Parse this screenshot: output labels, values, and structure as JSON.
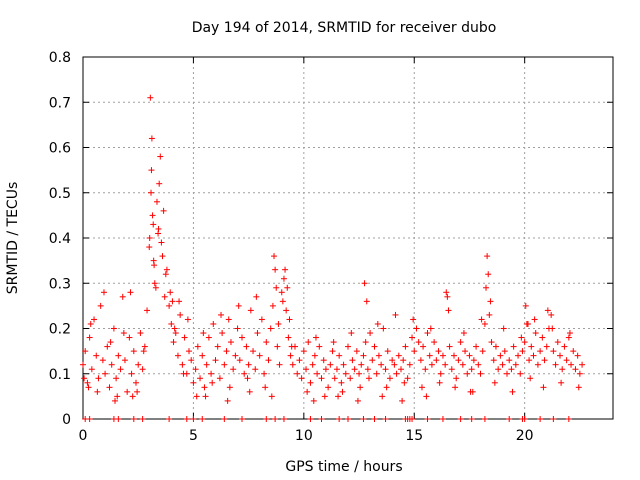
{
  "chart_data": {
    "type": "scatter",
    "title": "Day 194 of 2014, SRMTID for receiver dubo",
    "xlabel": "GPS time / hours",
    "ylabel": "SRMTID / TECUs",
    "xlim": [
      0,
      24
    ],
    "ylim": [
      0,
      0.8
    ],
    "xticks": [
      0,
      5,
      10,
      15,
      20
    ],
    "xtick_labels": [
      "0",
      "5",
      "10",
      "15",
      "20"
    ],
    "yticks": [
      0,
      0.1,
      0.2,
      0.3,
      0.4,
      0.5,
      0.6,
      0.7,
      0.8
    ],
    "ytick_labels": [
      "0",
      "0.1",
      "0.2",
      "0.3",
      "0.4",
      "0.5",
      "0.6",
      "0.7",
      "0.8"
    ],
    "grid": true,
    "marker": "+",
    "series": [
      {
        "name": "SRMTID",
        "color": "#ff0000",
        "x": [
          0.0,
          0.1,
          0.2,
          0.3,
          0.4,
          0.5,
          0.6,
          0.7,
          0.8,
          0.9,
          1.0,
          1.1,
          1.2,
          1.3,
          1.4,
          1.5,
          1.6,
          1.7,
          1.8,
          1.9,
          2.0,
          2.1,
          2.2,
          2.3,
          2.4,
          2.5,
          2.6,
          2.7,
          2.8,
          2.9,
          3.0,
          3.05,
          3.1,
          3.15,
          3.2,
          3.3,
          3.4,
          3.5,
          3.6,
          3.7,
          3.8,
          3.9,
          4.0,
          4.1,
          4.2,
          4.3,
          4.4,
          4.5,
          4.6,
          4.7,
          4.8,
          4.9,
          5.0,
          5.1,
          5.2,
          5.3,
          5.4,
          5.5,
          5.6,
          5.7,
          5.8,
          5.9,
          6.0,
          6.1,
          6.2,
          6.3,
          6.4,
          6.5,
          6.6,
          6.7,
          6.8,
          6.9,
          7.0,
          7.1,
          7.2,
          7.3,
          7.4,
          7.5,
          7.6,
          7.7,
          7.8,
          7.9,
          8.0,
          8.1,
          8.2,
          8.3,
          8.4,
          8.5,
          8.6,
          8.7,
          8.8,
          8.9,
          9.0,
          9.1,
          9.2,
          9.3,
          9.4,
          9.5,
          9.6,
          9.7,
          9.8,
          9.9,
          10.0,
          10.1,
          10.2,
          10.3,
          10.4,
          10.5,
          10.6,
          10.7,
          10.8,
          10.9,
          11.0,
          11.1,
          11.2,
          11.3,
          11.4,
          11.5,
          11.6,
          11.7,
          11.8,
          11.9,
          12.0,
          12.1,
          12.2,
          12.3,
          12.4,
          12.5,
          12.6,
          12.7,
          12.8,
          12.9,
          13.0,
          13.1,
          13.2,
          13.3,
          13.4,
          13.5,
          13.6,
          13.7,
          13.8,
          13.9,
          14.0,
          14.1,
          14.2,
          14.3,
          14.4,
          14.5,
          14.6,
          14.7,
          14.8,
          14.9,
          15.0,
          15.1,
          15.2,
          15.3,
          15.4,
          15.5,
          15.6,
          15.7,
          15.8,
          15.9,
          16.0,
          16.1,
          16.2,
          16.3,
          16.4,
          16.5,
          16.6,
          16.7,
          16.8,
          16.9,
          17.0,
          17.1,
          17.2,
          17.3,
          17.4,
          17.5,
          17.6,
          17.7,
          17.8,
          17.9,
          18.0,
          18.1,
          18.2,
          18.3,
          18.4,
          18.5,
          18.6,
          18.7,
          18.8,
          18.9,
          19.0,
          19.1,
          19.2,
          19.3,
          19.4,
          19.5,
          19.6,
          19.7,
          19.8,
          19.9,
          20.0,
          20.1,
          20.2,
          20.3,
          20.4,
          20.5,
          20.6,
          20.7,
          20.8,
          20.9,
          21.0,
          21.1,
          21.2,
          21.3,
          21.4,
          21.5,
          21.6,
          21.7,
          21.8,
          21.9,
          22.0,
          22.1,
          22.2,
          22.3,
          22.4,
          22.5,
          22.6,
          0.05,
          0.35,
          0.65,
          0.95,
          1.25,
          1.55,
          1.85,
          2.15,
          2.45,
          2.75,
          3.08,
          3.12,
          3.18,
          3.25,
          3.35,
          3.45,
          3.55,
          3.65,
          3.75,
          3.95,
          4.15,
          4.35,
          4.55,
          4.75,
          5.15,
          5.45,
          5.85,
          6.25,
          6.65,
          7.05,
          7.45,
          7.85,
          8.25,
          8.65,
          8.75,
          8.85,
          9.05,
          9.15,
          9.25,
          9.45,
          10.15,
          10.55,
          10.95,
          11.35,
          11.75,
          12.15,
          12.55,
          12.75,
          12.85,
          12.95,
          13.35,
          13.75,
          14.15,
          14.55,
          14.95,
          15.35,
          15.75,
          16.15,
          16.45,
          16.55,
          16.85,
          17.25,
          17.65,
          18.05,
          18.25,
          18.35,
          18.45,
          18.65,
          19.05,
          19.45,
          19.85,
          20.05,
          20.15,
          20.25,
          20.45,
          20.85,
          21.05,
          21.25,
          21.65,
          22.05,
          22.45,
          0.25,
          1.45,
          2.25,
          3.02,
          3.22,
          3.42,
          4.05,
          5.55,
          6.55,
          7.55,
          8.55,
          9.35,
          10.45,
          11.55,
          12.45,
          13.55,
          14.45,
          15.55,
          17.55
        ],
        "y": [
          0.12,
          0.15,
          0.08,
          0.18,
          0.11,
          0.22,
          0.14,
          0.09,
          0.25,
          0.13,
          0.1,
          0.16,
          0.07,
          0.12,
          0.2,
          0.09,
          0.14,
          0.11,
          0.27,
          0.13,
          0.06,
          0.18,
          0.1,
          0.15,
          0.08,
          0.12,
          0.19,
          0.11,
          0.16,
          0.24,
          0.38,
          0.71,
          0.55,
          0.45,
          0.35,
          0.29,
          0.41,
          0.58,
          0.36,
          0.27,
          0.33,
          0.25,
          0.21,
          0.17,
          0.19,
          0.14,
          0.23,
          0.12,
          0.18,
          0.1,
          0.15,
          0.13,
          0.08,
          0.11,
          0.16,
          0.09,
          0.14,
          0.07,
          0.12,
          0.18,
          0.1,
          0.21,
          0.13,
          0.16,
          0.09,
          0.19,
          0.12,
          0.15,
          0.22,
          0.17,
          0.11,
          0.14,
          0.2,
          0.13,
          0.18,
          0.1,
          0.16,
          0.12,
          0.24,
          0.15,
          0.11,
          0.19,
          0.14,
          0.22,
          0.1,
          0.17,
          0.13,
          0.2,
          0.25,
          0.33,
          0.16,
          0.12,
          0.28,
          0.31,
          0.24,
          0.18,
          0.14,
          0.12,
          0.16,
          0.1,
          0.13,
          0.09,
          0.15,
          0.11,
          0.17,
          0.08,
          0.12,
          0.14,
          0.1,
          0.16,
          0.09,
          0.13,
          0.11,
          0.07,
          0.12,
          0.15,
          0.09,
          0.11,
          0.14,
          0.08,
          0.12,
          0.1,
          0.16,
          0.09,
          0.13,
          0.11,
          0.15,
          0.1,
          0.12,
          0.14,
          0.17,
          0.11,
          0.19,
          0.13,
          0.16,
          0.1,
          0.14,
          0.12,
          0.2,
          0.11,
          0.15,
          0.09,
          0.13,
          0.12,
          0.1,
          0.14,
          0.11,
          0.13,
          0.16,
          0.09,
          0.12,
          0.18,
          0.15,
          0.2,
          0.17,
          0.13,
          0.16,
          0.11,
          0.19,
          0.14,
          0.12,
          0.17,
          0.13,
          0.15,
          0.1,
          0.14,
          0.12,
          0.27,
          0.16,
          0.11,
          0.14,
          0.09,
          0.13,
          0.17,
          0.12,
          0.15,
          0.1,
          0.14,
          0.11,
          0.13,
          0.16,
          0.12,
          0.1,
          0.15,
          0.21,
          0.36,
          0.23,
          0.17,
          0.13,
          0.16,
          0.11,
          0.14,
          0.12,
          0.15,
          0.1,
          0.13,
          0.11,
          0.16,
          0.12,
          0.14,
          0.1,
          0.15,
          0.17,
          0.21,
          0.13,
          0.16,
          0.14,
          0.19,
          0.12,
          0.15,
          0.18,
          0.13,
          0.16,
          0.2,
          0.23,
          0.15,
          0.12,
          0.17,
          0.14,
          0.11,
          0.16,
          0.13,
          0.18,
          0.12,
          0.15,
          0.11,
          0.14,
          0.1,
          0.12,
          0.09,
          0.21,
          0.06,
          0.28,
          0.17,
          0.05,
          0.19,
          0.28,
          0.06,
          0.15,
          0.5,
          0.62,
          0.43,
          0.3,
          0.48,
          0.52,
          0.39,
          0.46,
          0.32,
          0.28,
          0.2,
          0.26,
          0.1,
          0.22,
          0.05,
          0.19,
          0.08,
          0.23,
          0.07,
          0.25,
          0.09,
          0.27,
          0.07,
          0.36,
          0.29,
          0.21,
          0.26,
          0.33,
          0.29,
          0.16,
          0.06,
          0.18,
          0.05,
          0.17,
          0.06,
          0.19,
          0.07,
          0.3,
          0.26,
          0.09,
          0.21,
          0.07,
          0.23,
          0.08,
          0.22,
          0.07,
          0.2,
          0.08,
          0.28,
          0.24,
          0.07,
          0.19,
          0.06,
          0.22,
          0.29,
          0.32,
          0.26,
          0.08,
          0.2,
          0.06,
          0.18,
          0.25,
          0.21,
          0.09,
          0.22,
          0.07,
          0.24,
          0.2,
          0.08,
          0.19,
          0.07,
          0.07,
          0.04,
          0.05,
          0.4,
          0.34,
          0.42,
          0.26,
          0.05,
          0.04,
          0.06,
          0.05,
          0.22,
          0.04,
          0.05,
          0.04,
          0.05,
          0.04,
          0.05,
          0.06
        ]
      }
    ],
    "zero_markers_x": [
      0.1,
      0.3,
      1.4,
      1.6,
      2.3,
      2.7,
      3.9,
      4.7,
      5.0,
      5.4,
      6.4,
      7.2,
      8.3,
      8.7,
      9.1,
      10.3,
      10.8,
      11.6,
      12.0,
      12.7,
      13.2,
      13.7,
      14.6,
      14.7,
      14.8,
      14.9,
      15.6,
      16.3,
      17.1,
      17.6,
      18.2,
      19.3,
      19.9,
      20.0,
      20.7,
      21.3,
      22.0
    ]
  }
}
